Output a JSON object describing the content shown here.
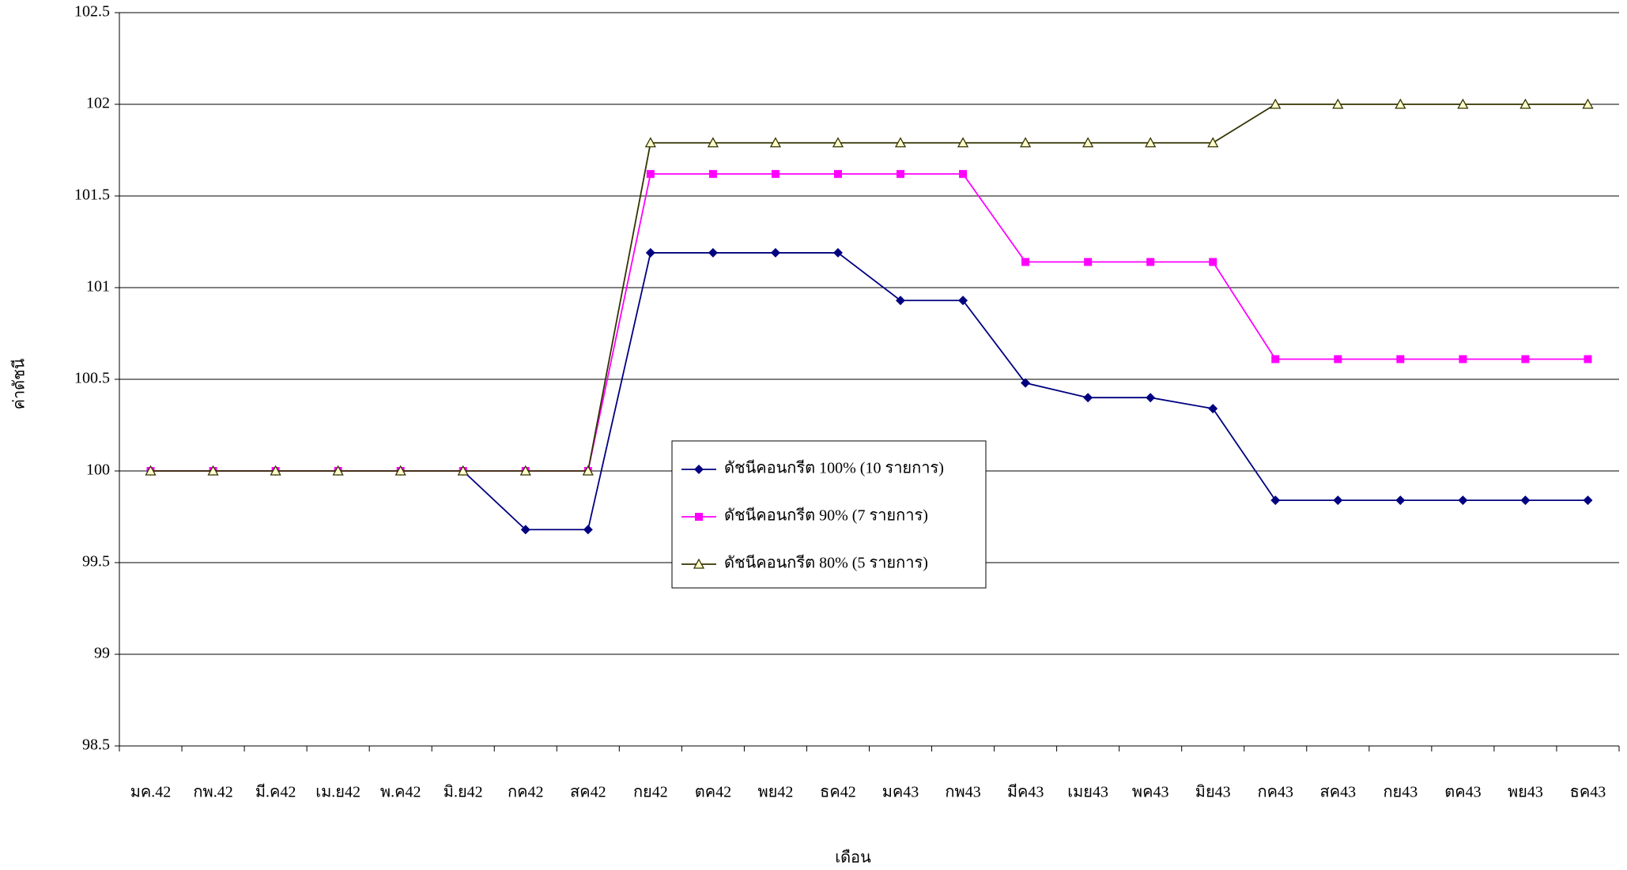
{
  "chart_data": {
    "type": "line",
    "xlabel": "เดือน",
    "ylabel": "ค่าดัชนี",
    "categories": [
      "มค.42",
      "กพ.42",
      "มี.ค42",
      "เม.ย42",
      "พ.ค42",
      "มิ.ย42",
      "กค42",
      "สค42",
      "กย42",
      "ตค42",
      "พย42",
      "ธค42",
      "มค43",
      "กพ43",
      "มีค43",
      "เมย43",
      "พค43",
      "มิย43",
      "กค43",
      "สค43",
      "กย43",
      "ตค43",
      "พย43",
      "ธค43"
    ],
    "series": [
      {
        "name": "ดัชนีคอนกรีต 100% (10 รายการ)",
        "color": "#000080",
        "marker": "diamond",
        "values": [
          100,
          100,
          100,
          100,
          100,
          100,
          99.68,
          99.68,
          101.19,
          101.19,
          101.19,
          101.19,
          100.93,
          100.93,
          100.48,
          100.4,
          100.4,
          100.34,
          99.84,
          99.84,
          99.84,
          99.84,
          99.84,
          99.84
        ]
      },
      {
        "name": "ดัชนีคอนกรีต 90% (7 รายการ)",
        "color": "#ff00ff",
        "marker": "square",
        "values": [
          100,
          100,
          100,
          100,
          100,
          100,
          100,
          100,
          101.62,
          101.62,
          101.62,
          101.62,
          101.62,
          101.62,
          101.14,
          101.14,
          101.14,
          101.14,
          100.61,
          100.61,
          100.61,
          100.61,
          100.61,
          100.61
        ]
      },
      {
        "name": "ดัชนีคอนกรีต 80% (5 รายการ)",
        "color": "#333300",
        "marker": "triangle",
        "values": [
          100,
          100,
          100,
          100,
          100,
          100,
          100,
          100,
          101.79,
          101.79,
          101.79,
          101.79,
          101.79,
          101.79,
          101.79,
          101.79,
          101.79,
          101.79,
          102,
          102,
          102,
          102,
          102,
          102
        ]
      }
    ],
    "ylim": [
      98.5,
      102.5
    ],
    "yticks": [
      98.5,
      99,
      99.5,
      100,
      100.5,
      101,
      101.5,
      102,
      102.5
    ],
    "grid": true,
    "legend": "center"
  }
}
